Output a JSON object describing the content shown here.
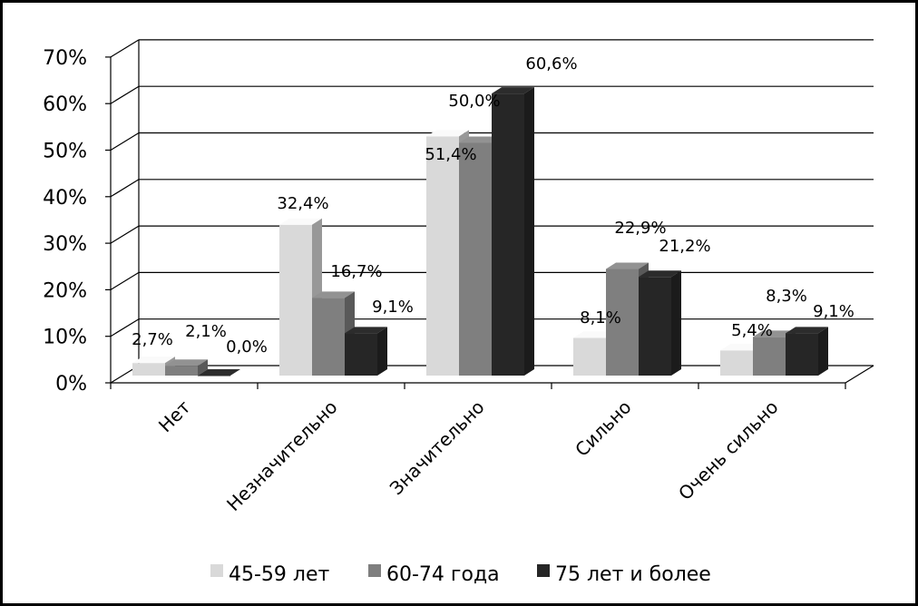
{
  "chart_data": {
    "type": "bar",
    "style": "3d-clustered",
    "categories": [
      "Нет",
      "Незначительно",
      "Значительно",
      "Сильно",
      "Очень сильно"
    ],
    "series": [
      {
        "name": "45-59 лет",
        "color": "#d9d9d9",
        "values": [
          2.7,
          32.4,
          51.4,
          8.1,
          5.4
        ],
        "labels": [
          "2,7%",
          "32,4%",
          "51,4%",
          "8,1%",
          "5,4%"
        ]
      },
      {
        "name": "60-74 года",
        "color": "#7f7f7f",
        "values": [
          2.1,
          16.7,
          50.0,
          22.9,
          8.3
        ],
        "labels": [
          "2,1%",
          "16,7%",
          "50,0%",
          "22,9%",
          "8,3%"
        ]
      },
      {
        "name": "75 лет и более",
        "color": "#262626",
        "values": [
          0.0,
          9.1,
          60.6,
          21.2,
          9.1
        ],
        "labels": [
          "0,0%",
          "9,1%",
          "60,6%",
          "21,2%",
          "9,1%"
        ]
      }
    ],
    "yticks": [
      "0%",
      "10%",
      "20%",
      "30%",
      "40%",
      "50%",
      "60%",
      "70%"
    ],
    "ylim": [
      0,
      70
    ],
    "grid": true,
    "legend": "bottom"
  }
}
